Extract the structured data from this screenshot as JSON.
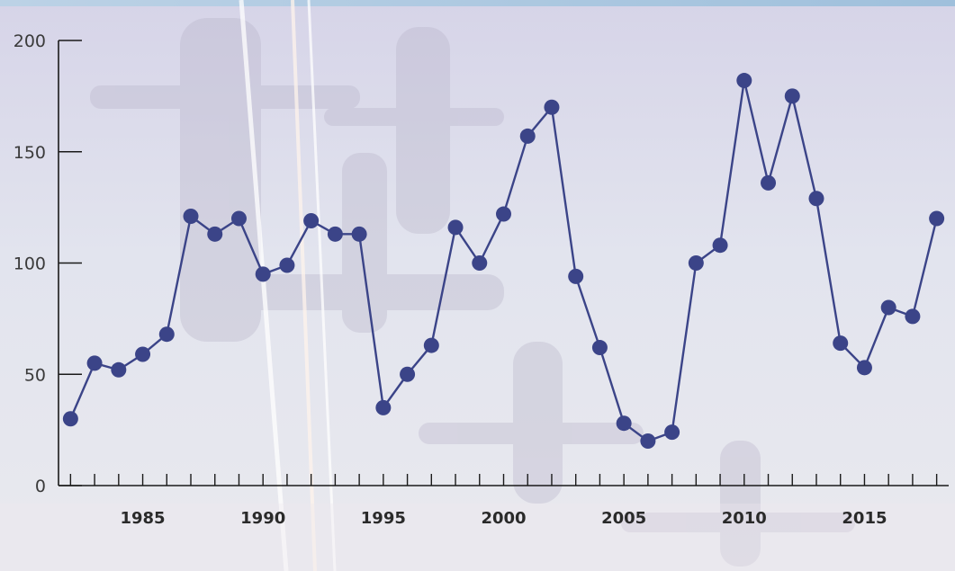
{
  "chart_data": {
    "type": "line",
    "title": "",
    "xlabel": "",
    "ylabel": "",
    "x": [
      1982,
      1983,
      1984,
      1985,
      1986,
      1987,
      1988,
      1989,
      1990,
      1991,
      1992,
      1993,
      1994,
      1995,
      1996,
      1997,
      1998,
      1999,
      2000,
      2001,
      2002,
      2003,
      2004,
      2005,
      2006,
      2007,
      2008,
      2009,
      2010,
      2011,
      2012,
      2013,
      2014,
      2015,
      2016,
      2017,
      2018
    ],
    "series": [
      {
        "values": [
          30,
          55,
          52,
          59,
          68,
          121,
          113,
          120,
          95,
          99,
          119,
          113,
          113,
          35,
          50,
          63,
          116,
          100,
          122,
          157,
          170,
          94,
          62,
          28,
          20,
          24,
          100,
          108,
          182,
          136,
          175,
          129,
          64,
          53,
          80,
          76,
          120
        ]
      }
    ],
    "xlim": [
      1981.5,
      2018.5
    ],
    "ylim": [
      0,
      200
    ],
    "yticks": [
      "0",
      "50",
      "100",
      "150",
      "200"
    ],
    "xticks": [
      "1985",
      "1990",
      "1995",
      "2000",
      "2005",
      "2010",
      "2015"
    ],
    "grid": false,
    "colors": {
      "line": "#3b4488",
      "marker": "#3b4488",
      "axis": "#1a1a1a"
    }
  }
}
